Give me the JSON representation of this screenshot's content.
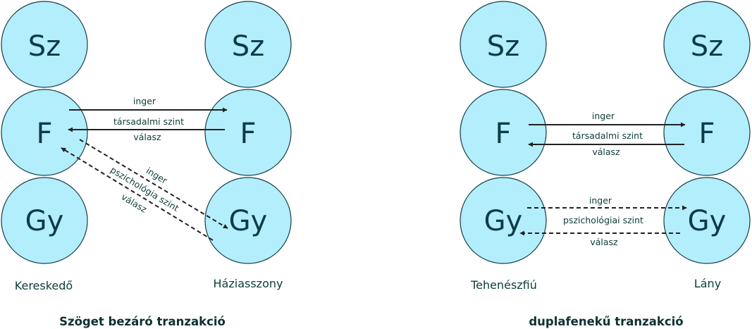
{
  "colors": {
    "circle_fill": "#b3eefc",
    "circle_stroke": "#163a44",
    "ego_text": "#0d3b47",
    "arrow": "#222222",
    "label_text": "#0d3b3a",
    "caption_text": "#0f2f33"
  },
  "ego_labels": {
    "parent": "Sz",
    "adult": "F",
    "child": "Gy"
  },
  "left_diagram": {
    "person_left": "Kereskedő",
    "person_right": "Háziasszony",
    "caption": "Szöget bezáró tranzakció",
    "social_stimulus": "inger",
    "social_level": "társadalmi szint",
    "social_response": "válasz",
    "psych_stimulus": "inger",
    "psych_level": "pszichológia szint",
    "psych_response": "válasz"
  },
  "right_diagram": {
    "person_left": "Tehenészfiú",
    "person_right": "Lány",
    "caption": "duplafenekű tranzakció",
    "social_stimulus": "inger",
    "social_level": "társadalmi szint",
    "social_response": "válasz",
    "psych_stimulus": "inger",
    "psych_level": "pszichológiai szint",
    "psych_response": "válasz"
  }
}
